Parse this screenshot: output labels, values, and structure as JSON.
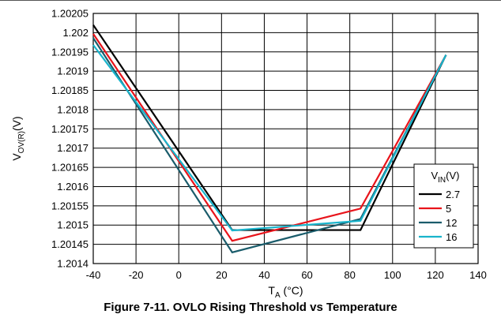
{
  "figure_caption": "Figure 7-11. OVLO Rising Threshold vs Temperature",
  "chart_data": {
    "type": "line",
    "xlabel": {
      "main": "T",
      "sub": "A",
      "unit": " (°C)"
    },
    "ylabel": {
      "main": "V",
      "sub": "OV(R)",
      "unit": "(V)"
    },
    "xlim": [
      -40,
      140
    ],
    "ylim": [
      1.2014,
      1.20205
    ],
    "x_ticks": [
      -40,
      -20,
      0,
      20,
      40,
      60,
      80,
      100,
      120,
      140
    ],
    "y_ticks": [
      "1.2014",
      "1.20145",
      "1.2015",
      "1.20155",
      "1.2016",
      "1.20165",
      "1.2017",
      "1.20175",
      "1.2018",
      "1.20185",
      "1.2019",
      "1.20195",
      "1.202",
      "1.20205"
    ],
    "grid": true,
    "legend": {
      "placement": "bottom-right",
      "title": {
        "main": "V",
        "sub": "IN",
        "unit": "(V)"
      }
    },
    "series": [
      {
        "name": "2.7",
        "color": "#000000",
        "x": [
          -40,
          25,
          85,
          125
        ],
        "y": [
          1.20202,
          1.201487,
          1.201487,
          1.201942
        ]
      },
      {
        "name": "5",
        "color": "#e8141b",
        "x": [
          -40,
          25,
          85,
          125
        ],
        "y": [
          1.201997,
          1.201459,
          1.201543,
          1.201942
        ]
      },
      {
        "name": "12",
        "color": "#1a5c6b",
        "x": [
          -40,
          25,
          85,
          125
        ],
        "y": [
          1.201986,
          1.201429,
          1.201516,
          1.201942
        ]
      },
      {
        "name": "16",
        "color": "#19b4cc",
        "x": [
          -40,
          25,
          85,
          125
        ],
        "y": [
          1.201968,
          1.201486,
          1.201511,
          1.201942
        ]
      }
    ]
  }
}
